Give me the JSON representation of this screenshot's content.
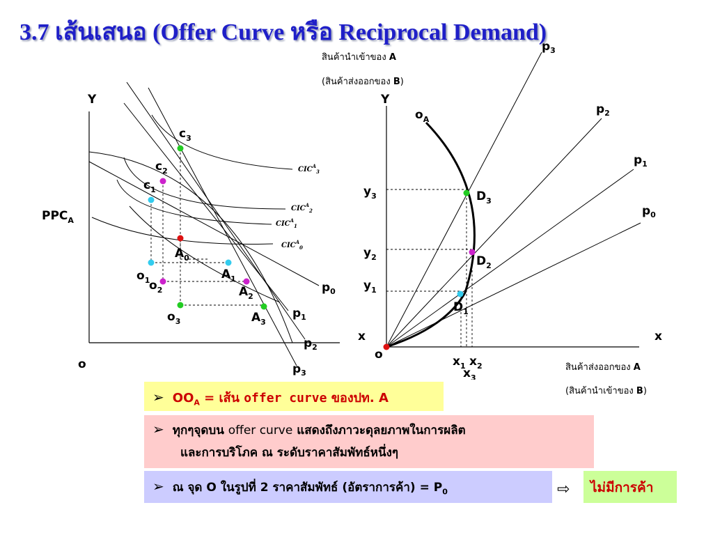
{
  "title": "3.7 เส้นเสนอ (Offer Curve หรือ Reciprocal Demand)",
  "left_diagram": {
    "y_axis": "Y",
    "origin": "o",
    "ppc": "PPC",
    "ppc_sub": "A",
    "c3": "c",
    "c3_sub": "3",
    "c2": "c",
    "c2_sub": "2",
    "c1": "c",
    "c1_sub": "1",
    "a0": "A",
    "a0_sub": "0",
    "a1": "A",
    "a1_sub": "1",
    "a2": "A",
    "a2_sub": "2",
    "a3": "A",
    "a3_sub": "3",
    "o1": "o",
    "o1_sub": "1",
    "o2": "o",
    "o2_sub": "2",
    "o3": "o",
    "o3_sub": "3",
    "cic3": "CIC",
    "cic3_sup": "A",
    "cic3_sub": "3",
    "cic2": "CIC",
    "cic2_sup": "A",
    "cic2_sub": "2",
    "cic1": "CIC",
    "cic1_sup": "A",
    "cic1_sub": "1",
    "cic0": "CIC",
    "cic0_sup": "A",
    "cic0_sub": "0",
    "p0": "p",
    "p0_sub": "0",
    "p1": "p",
    "p1_sub": "1",
    "p2": "p",
    "p2_sub": "2",
    "p3": "p",
    "p3_sub": "3"
  },
  "right_diagram": {
    "import_label_line1": "สินค้านำเข้าของ ",
    "import_label_line1_bold": "A",
    "import_label_line2": "(สินค้าส่งออกของ ",
    "import_label_line2_bold": "B",
    "import_label_line2_end": ")",
    "export_label_line1": "สินค้าส่งออกของ ",
    "export_label_line1_bold": "A",
    "export_label_line2": "(สินค้านำเข้าของ ",
    "export_label_line2_bold": "B",
    "export_label_line2_end": ")",
    "y_axis": "Y",
    "x_left": "x",
    "x_right": "x",
    "origin": "o",
    "oa": "o",
    "oa_sub": "A",
    "y3": "y",
    "y3_sub": "3",
    "y2": "y",
    "y2_sub": "2",
    "y1": "y",
    "y1_sub": "1",
    "d3": "D",
    "d3_sub": "3",
    "d2": "D",
    "d2_sub": "2",
    "d1": "D",
    "d1_sub": "1",
    "x1": "x",
    "x1_sub": "1",
    "x2": "x",
    "x2_sub": "2",
    "x3": "x",
    "x3_sub": "3",
    "p3": "p",
    "p3_sub": "3",
    "p2": "p",
    "p2_sub": "2",
    "p1": "p",
    "p1_sub": "1",
    "p0": "p",
    "p0_sub": "0"
  },
  "notes": {
    "line1_prefix": "OO",
    "line1_sub": "A",
    "line1_mid": " = เส้น ",
    "line1_term": "offer curve",
    "line1_end": " ของปท. A",
    "line2a_prefix": "ทุกๆจุดบน ",
    "line2a_term": "offer curve",
    "line2a_end": " แสดงถึงภาวะดุลยภาพในการผลิต",
    "line2b": "และการบริโภค ณ ระดับราคาสัมพัทธ์หนึ่งๆ",
    "line3_text": "ณ จุด O ในรูปที่ 2 ราคาสัมพัทธ์ (อัตราการค้า) = P",
    "line3_sub": "0",
    "conclusion": "ไม่มีการค้า",
    "bullet": "➢",
    "arrow": "⇨"
  },
  "colors": {
    "title": "#1f1fc8",
    "green_point": "#22cc22",
    "magenta_point": "#cc22cc",
    "cyan_point": "#33ccee",
    "red_point": "#dd1111"
  }
}
